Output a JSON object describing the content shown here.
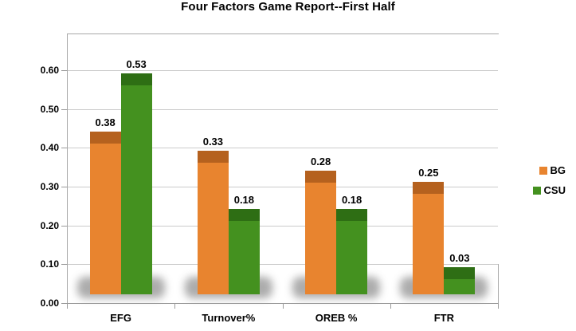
{
  "chart_data": {
    "type": "bar",
    "title": "Four Factors Game Report--First Half",
    "categories": [
      "EFG",
      "Turnover%",
      "OREB %",
      "FTR"
    ],
    "series": [
      {
        "name": "BG",
        "values": [
          0.38,
          0.33,
          0.28,
          0.25
        ],
        "labels": [
          "0.38",
          "0.33",
          "0.28",
          "0.25"
        ],
        "color": "#E8842F",
        "cap_color": "#B5611E"
      },
      {
        "name": "CSU",
        "values": [
          0.53,
          0.18,
          0.18,
          0.03
        ],
        "labels": [
          "0.53",
          "0.18",
          "0.18",
          "0.03"
        ],
        "color": "#44911F",
        "cap_color": "#2E6E14"
      }
    ],
    "xlabel": "",
    "ylabel": "",
    "ylim": [
      0,
      0.6
    ],
    "y_ticks": [
      "0.00",
      "0.10",
      "0.20",
      "0.30",
      "0.40",
      "0.50",
      "0.60"
    ],
    "grid": true,
    "legend_position": "right",
    "value_labels_shown": true
  },
  "colors": {
    "background": "#FFFFFF",
    "text": "#000000",
    "gridline": "#CBCBCB",
    "plot_border": "#A8A8A8",
    "axis": "#9B9B9B",
    "shadow": "#989898"
  }
}
